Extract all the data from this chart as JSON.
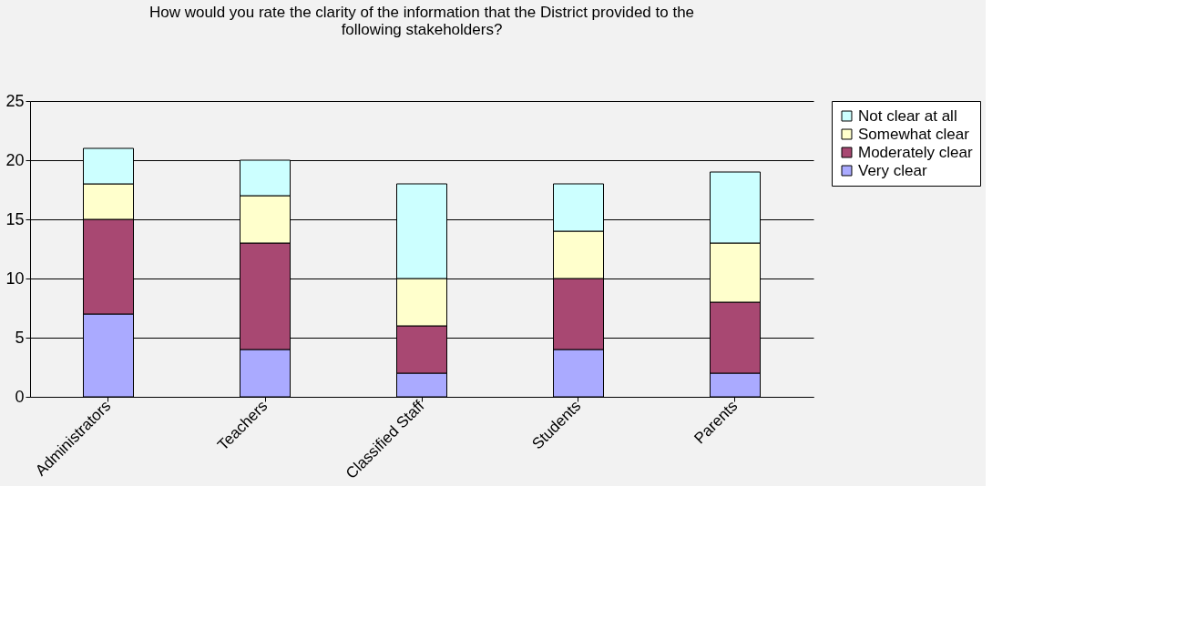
{
  "chart_data": {
    "type": "bar",
    "title": "How would you rate the clarity of the information that the  District provided to the following stakeholders?",
    "categories": [
      "Administrators",
      "Teachers",
      "Classified Staff",
      "Students",
      "Parents"
    ],
    "stacked": true,
    "series": [
      {
        "name": "Very clear",
        "color": "#aaaaff",
        "values": [
          7,
          4,
          2,
          4,
          2
        ]
      },
      {
        "name": "Moderately clear",
        "color": "#a84872",
        "values": [
          8,
          9,
          4,
          6,
          6
        ]
      },
      {
        "name": "Somewhat clear",
        "color": "#ffffcc",
        "values": [
          3,
          4,
          4,
          4,
          5
        ]
      },
      {
        "name": "Not clear at all",
        "color": "#ccffff",
        "values": [
          3,
          3,
          8,
          4,
          6
        ]
      }
    ],
    "ylim": [
      0,
      25
    ],
    "yticks": [
      0,
      5,
      10,
      15,
      20,
      25
    ],
    "grid": "y",
    "legend": "right"
  }
}
